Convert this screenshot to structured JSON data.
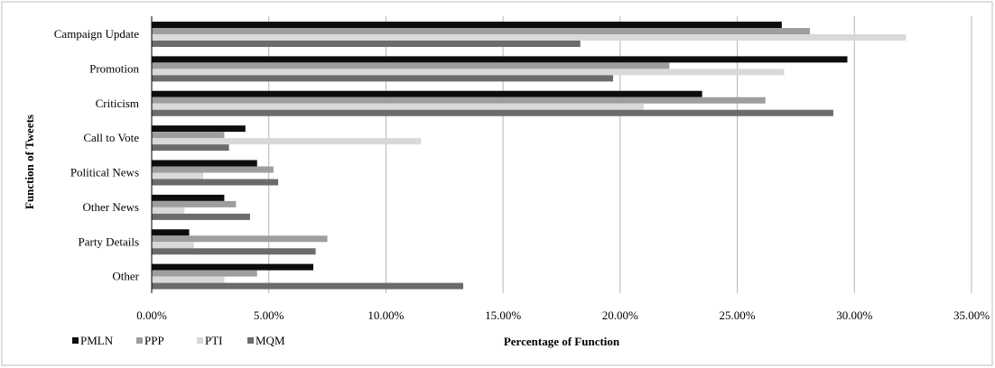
{
  "chart_data": {
    "type": "bar",
    "orientation": "horizontal",
    "categories": [
      "Campaign Update",
      "Promotion",
      "Criticism",
      "Call to Vote",
      "Political News",
      "Other News",
      "Party Details",
      "Other"
    ],
    "series": [
      {
        "name": "PMLN",
        "color": "#0d0d0d",
        "values": [
          26.9,
          29.7,
          23.5,
          4.0,
          4.5,
          3.1,
          1.6,
          6.9
        ]
      },
      {
        "name": "PPP",
        "color": "#9e9e9e",
        "values": [
          28.1,
          22.1,
          26.2,
          3.1,
          5.2,
          3.6,
          7.5,
          4.5
        ]
      },
      {
        "name": "PTI",
        "color": "#d9d9d9",
        "values": [
          32.2,
          27.0,
          21.0,
          11.5,
          2.2,
          1.4,
          1.8,
          3.1
        ]
      },
      {
        "name": "MQM",
        "color": "#6b6b6b",
        "values": [
          18.3,
          19.7,
          29.1,
          3.3,
          5.4,
          4.2,
          7.0,
          13.3
        ]
      }
    ],
    "xlim": [
      0,
      35
    ],
    "x_ticks": [
      "0.00%",
      "5.00%",
      "10.00%",
      "15.00%",
      "20.00%",
      "25.00%",
      "30.00%",
      "35.00%"
    ],
    "xlabel": "Percentage of Function",
    "ylabel": "Function of Tweets",
    "title": "",
    "grid": "vertical",
    "legend_position": "bottom-left"
  }
}
